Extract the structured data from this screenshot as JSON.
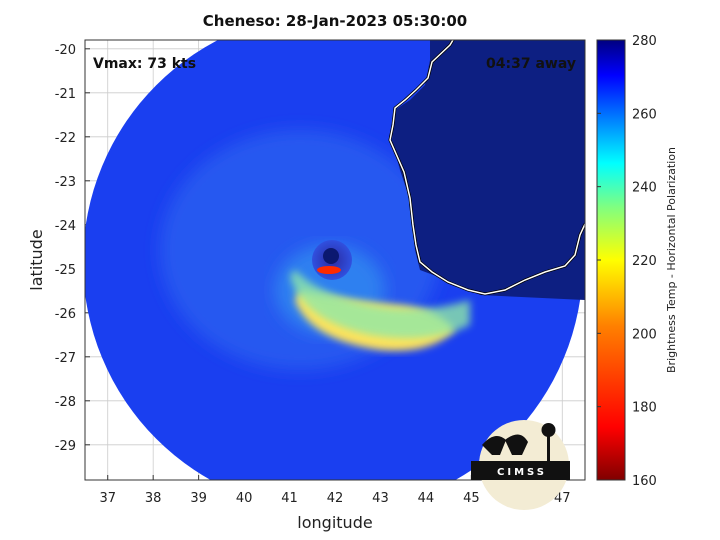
{
  "title": "Cheneso: 28-Jan-2023 05:30:00",
  "annotations": {
    "vmax": "Vmax: 73 kts",
    "time_away": "04:37 away"
  },
  "logo_text": "CIMSS",
  "colors": {
    "background_field": "#1a3ff0",
    "land": "#0d1f82",
    "coast": "#ffffff",
    "cold_core": "#ff2a00",
    "colormap": [
      "#800000",
      "#ff0000",
      "#ff8000",
      "#ffff00",
      "#80ff80",
      "#00ffff",
      "#0080ff",
      "#0000ff",
      "#000080"
    ]
  },
  "chart_data": {
    "type": "heatmap",
    "title": "Cheneso: 28-Jan-2023 05:30:00",
    "xlabel": "longitude",
    "ylabel": "latitude",
    "xlim": [
      36.5,
      47.5
    ],
    "ylim": [
      -29.8,
      -19.8
    ],
    "xticks": [
      "37",
      "38",
      "39",
      "40",
      "41",
      "42",
      "43",
      "44",
      "45",
      "46",
      "47"
    ],
    "yticks": [
      "-20",
      "-21",
      "-22",
      "-23",
      "-24",
      "-25",
      "-26",
      "-27",
      "-28",
      "-29"
    ],
    "grid": true,
    "colorbar": {
      "label": "Brightness Temp - Horizontal Polarization",
      "range": [
        160,
        280
      ],
      "ticks": [
        "160",
        "180",
        "200",
        "220",
        "240",
        "260",
        "280"
      ]
    },
    "storm_center": {
      "lon": 41.9,
      "lat": -25.1
    }
  }
}
